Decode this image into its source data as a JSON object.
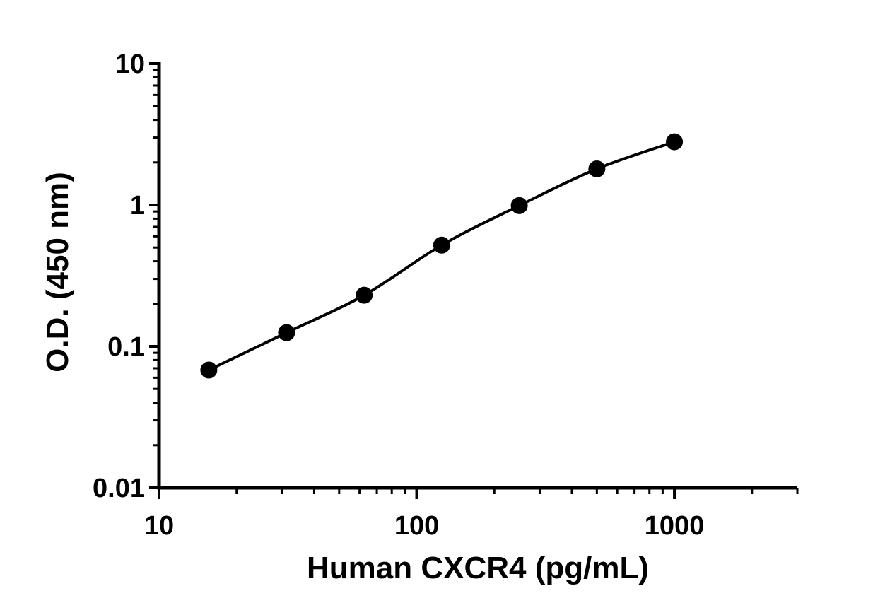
{
  "chart_data": {
    "type": "scatter",
    "xlabel": "Human CXCR4 (pg/mL)",
    "ylabel": "O.D. (450 nm)",
    "x_scale": "log",
    "y_scale": "log",
    "xlim": [
      10,
      3000
    ],
    "ylim": [
      0.01,
      10
    ],
    "x_ticks": [
      "10",
      "100",
      "1000"
    ],
    "y_ticks": [
      "0.01",
      "0.1",
      "1",
      "10"
    ],
    "grid": false,
    "legend": "none",
    "colors": {
      "marker": "#000000",
      "curve": "#000000",
      "axis": "#000000"
    },
    "series": [
      {
        "x": [
          15.6,
          31.25,
          62.5,
          125,
          250,
          500,
          1000
        ],
        "y": [
          0.068,
          0.125,
          0.23,
          0.52,
          0.99,
          1.8,
          2.8
        ],
        "fit_curve": true
      }
    ]
  }
}
